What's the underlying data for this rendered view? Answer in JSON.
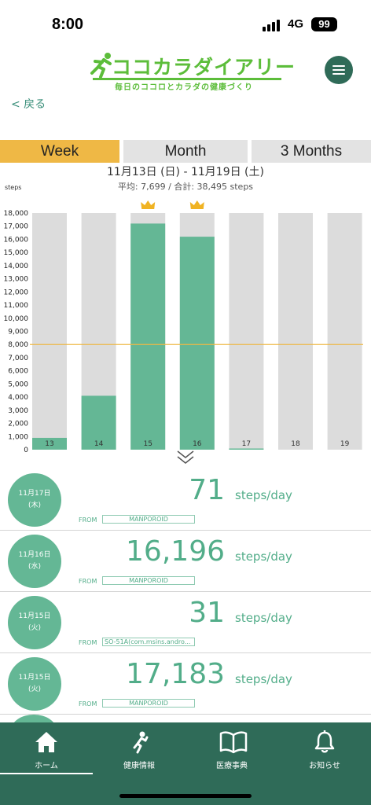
{
  "status_bar": {
    "time": "8:00",
    "network": "4G",
    "battery": "99"
  },
  "header": {
    "title": "ココカラダイアリー",
    "tagline": "毎日のココロとカラダの健康づくり"
  },
  "back_label": "< 戻る",
  "period_tabs": {
    "week": "Week",
    "month": "Month",
    "three_months": "3 Months",
    "selected": "Week"
  },
  "date_range": "11月13日 (日) - 11月19日 (土)",
  "summary": "平均: 7,699 / 合計: 38,495 steps",
  "colors": {
    "brand": "#2f6b58",
    "accent": "#64b795",
    "tab_active": "#efb845",
    "target_line": "#efb845"
  },
  "chart_data": {
    "type": "bar",
    "ylabel": "steps",
    "ylim": [
      0,
      18000
    ],
    "yticks": [
      0,
      1000,
      2000,
      3000,
      4000,
      5000,
      6000,
      7000,
      8000,
      9000,
      10000,
      11000,
      12000,
      13000,
      14000,
      15000,
      16000,
      17000,
      18000
    ],
    "ytick_labels": [
      "0",
      "1,000",
      "2,000",
      "3,000",
      "4,000",
      "5,000",
      "6,000",
      "7,000",
      "8,000",
      "9,000",
      "10,000",
      "11,000",
      "12,000",
      "13,000",
      "14,000",
      "15,000",
      "16,000",
      "17,000",
      "18,000"
    ],
    "categories": [
      "13",
      "14",
      "15",
      "16",
      "17",
      "18",
      "19"
    ],
    "values": [
      900,
      4100,
      17200,
      16200,
      71,
      0,
      0
    ],
    "crowned": [
      false,
      false,
      true,
      true,
      false,
      false,
      false
    ],
    "target_line": 8000,
    "grid": false
  },
  "entries": [
    {
      "date": "11月17日",
      "weekday": "(木)",
      "steps": "71",
      "unit": "steps/day",
      "from": "FROM",
      "source": "MANPOROID"
    },
    {
      "date": "11月16日",
      "weekday": "(水)",
      "steps": "16,196",
      "unit": "steps/day",
      "from": "FROM",
      "source": "MANPOROID"
    },
    {
      "date": "11月15日",
      "weekday": "(火)",
      "steps": "31",
      "unit": "steps/day",
      "from": "FROM",
      "source": "SO-51A(com.msins.andro..."
    },
    {
      "date": "11月15日",
      "weekday": "(火)",
      "steps": "17,183",
      "unit": "steps/day",
      "from": "FROM",
      "source": "MANPOROID"
    }
  ],
  "tabbar": {
    "home": "ホーム",
    "health": "健康情報",
    "medical": "医療事典",
    "notice": "お知らせ"
  }
}
